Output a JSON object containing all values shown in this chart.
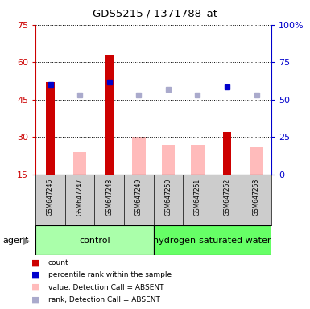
{
  "title": "GDS5215 / 1371788_at",
  "samples": [
    "GSM647246",
    "GSM647247",
    "GSM647248",
    "GSM647249",
    "GSM647250",
    "GSM647251",
    "GSM647252",
    "GSM647253"
  ],
  "red_bars": [
    52,
    null,
    63,
    null,
    null,
    null,
    32,
    null
  ],
  "pink_bars": [
    null,
    24,
    null,
    30,
    27,
    27,
    null,
    26
  ],
  "blue_squares_val": [
    51,
    null,
    52,
    null,
    null,
    null,
    50,
    null
  ],
  "lavender_squares_val": [
    null,
    47,
    null,
    47,
    49,
    47,
    null,
    47
  ],
  "ylim_left": [
    15,
    75
  ],
  "ylim_right": [
    0,
    100
  ],
  "left_yticks": [
    15,
    30,
    45,
    60,
    75
  ],
  "right_yticks": [
    0,
    25,
    50,
    75,
    100
  ],
  "left_ytick_labels": [
    "15",
    "30",
    "45",
    "60",
    "75"
  ],
  "right_ytick_labels": [
    "0",
    "25",
    "50",
    "75",
    "100%"
  ],
  "left_axis_color": "#cc0000",
  "right_axis_color": "#0000cc",
  "group_label_control": "control",
  "group_label_hsw": "hydrogen-saturated water",
  "agent_label": "agent",
  "bar_width": 0.45,
  "red_bar_width": 0.28,
  "plot_bg": "#ffffff",
  "panel_bg": "#cccccc",
  "control_bg": "#aaffaa",
  "hsw_bg": "#66ff66",
  "legend_colors": [
    "#cc0000",
    "#0000cc",
    "#ffbbbb",
    "#aaaacc"
  ],
  "legend_labels": [
    "count",
    "percentile rank within the sample",
    "value, Detection Call = ABSENT",
    "rank, Detection Call = ABSENT"
  ]
}
